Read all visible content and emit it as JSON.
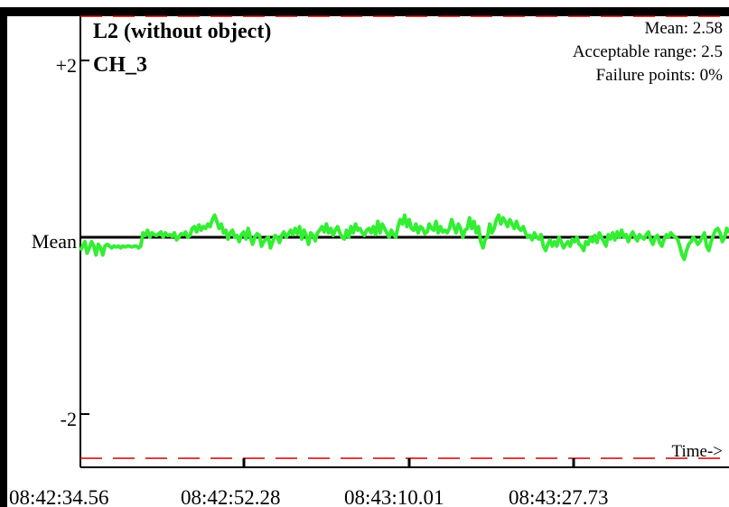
{
  "chart_data": {
    "type": "line",
    "title": "L2 (without object)",
    "subtitle": "CH_3",
    "y_tick_labels": [
      "+2",
      "Mean",
      "-2"
    ],
    "x_tick_labels": [
      "08:42:34.56",
      "08:42:52.28",
      "08:43:10.01",
      "08:43:27.73"
    ],
    "time_label": "Time->",
    "stats": {
      "mean": "Mean: 2.58",
      "range": "Acceptable range: 2.5",
      "failure": "Failure points: 0%"
    },
    "ylim": [
      -2.5,
      2.5
    ],
    "acceptable_limits": [
      -2.5,
      2.5
    ],
    "xlim": [
      0,
      80
    ],
    "series_color": "#33ee33",
    "limit_color": "#cc0000",
    "series": [
      {
        "values": [
          -0.15,
          -0.1,
          -0.05,
          -0.18,
          -0.12,
          -0.05,
          -0.1,
          -0.2,
          -0.08,
          -0.12,
          -0.2,
          -0.1,
          -0.08,
          -0.1,
          -0.12,
          -0.1,
          -0.11,
          -0.1,
          -0.12,
          -0.1,
          -0.11,
          -0.1,
          -0.1,
          -0.11,
          -0.1,
          -0.1,
          -0.12,
          -0.1,
          0.05,
          0.02,
          0.08,
          0.0,
          0.05,
          0.03,
          0.02,
          0.04,
          0.06,
          0.0,
          0.05,
          0.02,
          0.03,
          0.01,
          0.05,
          -0.03,
          0.0,
          0.04,
          0.03,
          0.06,
          0.0,
          0.02,
          0.1,
          0.12,
          0.06,
          0.14,
          0.08,
          0.12,
          0.1,
          0.15,
          0.12,
          0.2,
          0.25,
          0.18,
          0.1,
          0.15,
          0.05,
          0.08,
          -0.02,
          0.05,
          0.08,
          0.0,
          0.02,
          -0.05,
          0.03,
          0.06,
          -0.02,
          0.1,
          0.0,
          -0.08,
          0.0,
          0.04,
          0.02,
          -0.1,
          -0.05,
          -0.02,
          0.0,
          -0.12,
          -0.05,
          0.02,
          0.0,
          -0.06,
          0.02,
          0.06,
          0.0,
          0.04,
          0.08,
          0.03,
          0.1,
          0.04,
          0.12,
          -0.02,
          0.08,
          0.02,
          -0.08,
          0.05,
          0.02,
          -0.04,
          0.05,
          0.08,
          0.12,
          0.06,
          0.15,
          0.05,
          0.1,
          0.02,
          0.08,
          0.12,
          0.05,
          0.0,
          -0.02,
          0.08,
          0.0,
          0.12,
          0.05,
          0.15,
          0.08,
          0.1,
          0.05,
          0.02,
          0.08,
          0.1,
          0.05,
          0.12,
          0.03,
          0.18,
          0.05,
          0.15,
          0.1,
          0.05,
          0.0,
          0.08,
          0.03,
          0.0,
          0.12,
          0.2,
          0.15,
          0.25,
          0.12,
          0.2,
          0.1,
          0.08,
          0.15,
          0.05,
          0.12,
          0.1,
          0.04,
          0.06,
          0.15,
          0.1,
          0.08,
          0.18,
          0.05,
          0.12,
          0.06,
          0.08,
          0.05,
          0.1,
          0.2,
          0.12,
          0.05,
          0.15,
          0.1,
          0.0,
          0.08,
          0.1,
          0.22,
          0.1,
          0.18,
          0.05,
          0.12,
          -0.05,
          -0.12,
          -0.02,
          0.0,
          0.15,
          0.05,
          0.1,
          0.2,
          0.25,
          0.15,
          0.22,
          0.18,
          0.12,
          0.2,
          0.15,
          0.1,
          0.18,
          0.1,
          0.08,
          0.12,
          0.05,
          0.0,
          0.02,
          -0.03,
          0.05,
          0.0,
          -0.02,
          0.03,
          -0.1,
          -0.15,
          -0.08,
          -0.03,
          -0.1,
          -0.05,
          -0.1,
          0.0,
          -0.05,
          -0.12,
          -0.08,
          -0.05,
          -0.1,
          -0.02,
          -0.05,
          0.0,
          -0.08,
          -0.1,
          -0.15,
          -0.05,
          -0.08,
          0.0,
          -0.05,
          0.02,
          -0.06,
          0.05,
          0.0,
          -0.05,
          -0.1,
          0.03,
          -0.02,
          0.05,
          -0.03,
          0.06,
          0.0,
          0.08,
          0.0,
          0.03,
          -0.05,
          0.02,
          0.06,
          0.0,
          -0.04,
          0.03,
          0.0,
          -0.02,
          0.03,
          0.06,
          -0.03,
          -0.08,
          0.0,
          0.02,
          -0.06,
          -0.1,
          -0.02,
          0.03,
          0.0,
          0.05,
          0.02,
          0.0,
          -0.02,
          -0.1,
          -0.2,
          -0.25,
          -0.15,
          -0.08,
          -0.05,
          0.0,
          -0.03,
          -0.08,
          -0.05,
          0.0,
          0.05,
          -0.1,
          -0.15,
          -0.05,
          0.02,
          0.08,
          0.1,
          0.05,
          -0.05,
          0.0,
          0.1,
          0.05
        ]
      }
    ]
  }
}
